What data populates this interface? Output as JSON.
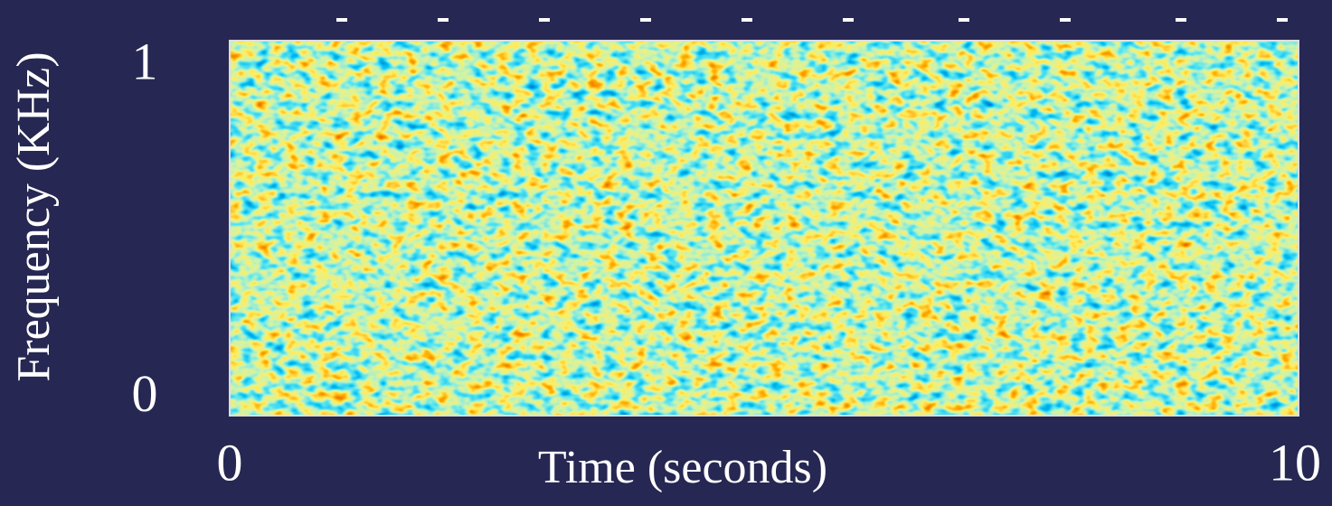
{
  "chart_data": {
    "type": "spectrogram",
    "xlabel": "Time (seconds)",
    "ylabel": "Frequency (KHz)",
    "xlim": [
      0,
      10
    ],
    "xticks": [
      0,
      10
    ],
    "ylim": [
      -0.05,
      1.08
    ],
    "yticks": [
      0,
      1
    ]
  }
}
